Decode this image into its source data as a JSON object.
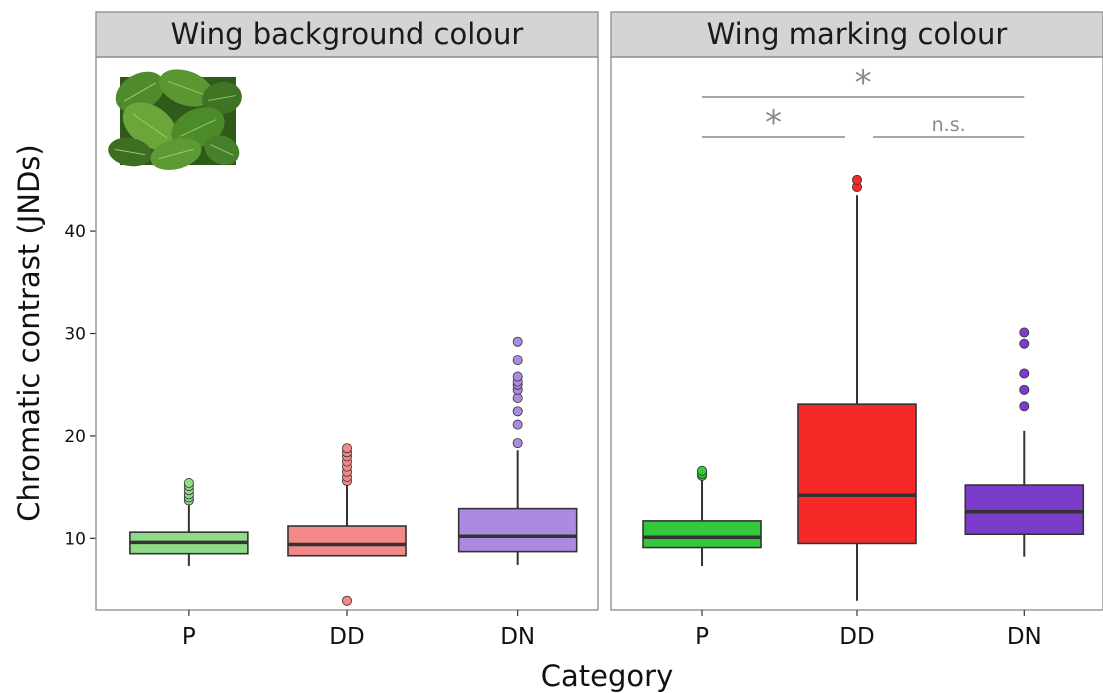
{
  "chart_data": {
    "type": "box",
    "categories": [
      "P",
      "DD",
      "DN"
    ],
    "xlabel": "Category",
    "ylabel": "Chromatic contrast (JNDs)",
    "ylim": [
      3,
      57
    ],
    "yticks": [
      10,
      20,
      30,
      40
    ],
    "grid": false,
    "legend": "none",
    "panels": [
      {
        "title": "Wing background colour",
        "inset_image": "green-leaves-photo",
        "boxes": [
          {
            "category": "P",
            "color": "#8edb88",
            "whisker_low": 7.3,
            "q1": 8.5,
            "median": 9.6,
            "q3": 10.6,
            "whisker_high": 13.6,
            "outliers": [
              13.7,
              14.0,
              14.3,
              14.7,
              15.1,
              15.4
            ]
          },
          {
            "category": "DD",
            "color": "#f28888",
            "whisker_low": 8.3,
            "q1": 8.3,
            "median": 9.4,
            "q3": 11.2,
            "whisker_high": 15.3,
            "outliers": [
              3.9,
              15.6,
              16.0,
              16.5,
              17.0,
              17.5,
              18.0,
              18.4,
              18.8
            ]
          },
          {
            "category": "DN",
            "color": "#ab8ae0",
            "whisker_low": 7.4,
            "q1": 8.7,
            "median": 10.2,
            "q3": 12.9,
            "whisker_high": 18.6,
            "outliers": [
              19.3,
              21.1,
              22.4,
              23.7,
              24.5,
              25.0,
              25.3,
              25.8,
              27.4,
              29.2
            ]
          }
        ],
        "annotations": []
      },
      {
        "title": "Wing marking colour",
        "inset_image": "",
        "boxes": [
          {
            "category": "P",
            "color": "#34c83c",
            "whisker_low": 7.3,
            "q1": 9.1,
            "median": 10.1,
            "q3": 11.7,
            "whisker_high": 15.8,
            "outliers": [
              16.1,
              16.3,
              16.6
            ]
          },
          {
            "category": "DD",
            "color": "#f62828",
            "whisker_low": 3.9,
            "q1": 9.5,
            "median": 14.2,
            "q3": 23.1,
            "whisker_high": 43.5,
            "outliers": [
              44.3,
              45.0
            ]
          },
          {
            "category": "DN",
            "color": "#7a3cc9",
            "whisker_low": 8.2,
            "q1": 10.4,
            "median": 12.6,
            "q3": 15.2,
            "whisker_high": 20.5,
            "outliers": [
              22.9,
              24.5,
              26.1,
              29.0,
              30.1
            ]
          }
        ],
        "annotations": [
          {
            "from": "P",
            "to": "DN",
            "label": "*",
            "level": 2
          },
          {
            "from": "P",
            "to": "DD",
            "label": "*",
            "level": 1
          },
          {
            "from": "DD",
            "to": "DN",
            "label": "n.s.",
            "level": 1
          }
        ]
      }
    ]
  }
}
